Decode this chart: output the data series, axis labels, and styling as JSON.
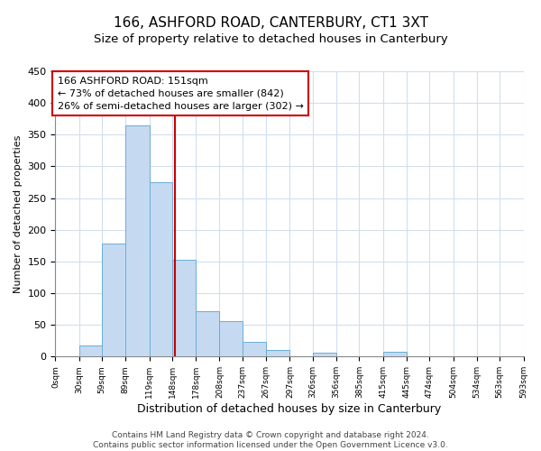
{
  "title": "166, ASHFORD ROAD, CANTERBURY, CT1 3XT",
  "subtitle": "Size of property relative to detached houses in Canterbury",
  "xlabel": "Distribution of detached houses by size in Canterbury",
  "ylabel": "Number of detached properties",
  "bar_edges": [
    0,
    30,
    59,
    89,
    119,
    148,
    178,
    208,
    237,
    267,
    297,
    326,
    356,
    385,
    415,
    445,
    474,
    504,
    534,
    563,
    593
  ],
  "bar_heights": [
    0,
    18,
    178,
    365,
    275,
    152,
    71,
    56,
    23,
    10,
    0,
    6,
    0,
    0,
    8,
    0,
    0,
    1,
    0,
    1,
    0
  ],
  "bar_color": "#c5d9f1",
  "bar_edgecolor": "#6baed6",
  "property_line_x": 151,
  "property_line_color": "#cc0000",
  "annotation_line1": "166 ASHFORD ROAD: 151sqm",
  "annotation_line2": "← 73% of detached houses are smaller (842)",
  "annotation_line3": "26% of semi-detached houses are larger (302) →",
  "annotation_box_edgecolor": "#cc0000",
  "annotation_box_facecolor": "#ffffff",
  "ylim": [
    0,
    450
  ],
  "xlim": [
    0,
    593
  ],
  "tick_labels": [
    "0sqm",
    "30sqm",
    "59sqm",
    "89sqm",
    "119sqm",
    "148sqm",
    "178sqm",
    "208sqm",
    "237sqm",
    "267sqm",
    "297sqm",
    "326sqm",
    "356sqm",
    "385sqm",
    "415sqm",
    "445sqm",
    "474sqm",
    "504sqm",
    "534sqm",
    "563sqm",
    "593sqm"
  ],
  "tick_positions": [
    0,
    30,
    59,
    89,
    119,
    148,
    178,
    208,
    237,
    267,
    297,
    326,
    356,
    385,
    415,
    445,
    474,
    504,
    534,
    563,
    593
  ],
  "ytick_positions": [
    0,
    50,
    100,
    150,
    200,
    250,
    300,
    350,
    400,
    450
  ],
  "footer_text": "Contains HM Land Registry data © Crown copyright and database right 2024.\nContains public sector information licensed under the Open Government Licence v3.0.",
  "background_color": "#ffffff",
  "grid_color": "#d0dff0",
  "title_fontsize": 11,
  "subtitle_fontsize": 9.5,
  "xlabel_fontsize": 9,
  "ylabel_fontsize": 8,
  "tick_fontsize": 6.5,
  "ytick_fontsize": 8,
  "footer_fontsize": 6.5,
  "annot_fontsize": 8
}
